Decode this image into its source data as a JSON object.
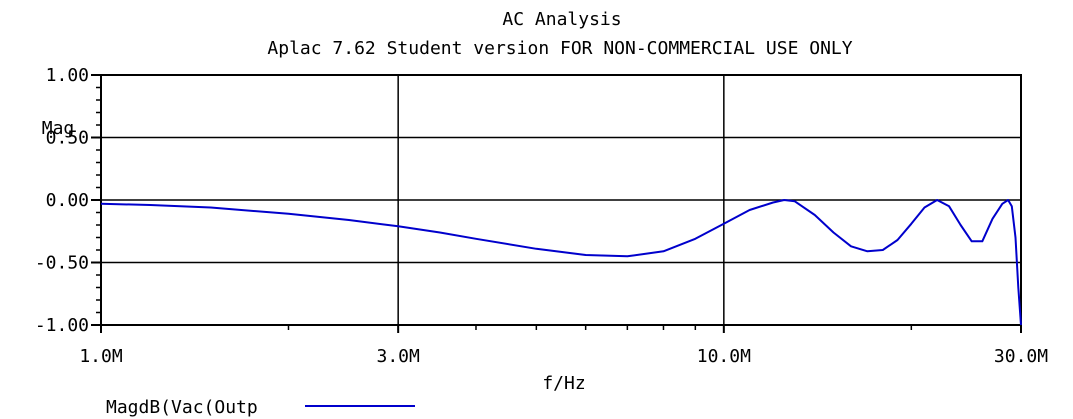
{
  "chart_data": {
    "type": "line",
    "title": "AC Analysis",
    "subtitle": "Aplac 7.62 Student version FOR NON-COMMERCIAL USE ONLY",
    "xlabel": "f/Hz",
    "ylabel": "Mag",
    "x_scale": "log",
    "xlim": [
      1000000,
      30000000
    ],
    "ylim": [
      -1.0,
      1.0
    ],
    "x_ticks": [
      {
        "value": 1000000,
        "label": "1.0M"
      },
      {
        "value": 3000000,
        "label": "3.0M"
      },
      {
        "value": 10000000,
        "label": "10.0M"
      },
      {
        "value": 30000000,
        "label": "30.0M"
      }
    ],
    "y_ticks": [
      {
        "value": 1.0,
        "label": "1.00"
      },
      {
        "value": 0.5,
        "label": "0.50"
      },
      {
        "value": 0.0,
        "label": "0.00"
      },
      {
        "value": -0.5,
        "label": "-0.50"
      },
      {
        "value": -1.0,
        "label": "-1.00"
      }
    ],
    "grid": true,
    "legend_position": "bottom-left",
    "series": [
      {
        "name": "MagdB(Vac(Outp",
        "color": "#0000cc",
        "x": [
          1000000,
          1200000,
          1500000,
          2000000,
          2500000,
          3000000,
          3500000,
          4000000,
          5000000,
          6000000,
          7000000,
          8000000,
          9000000,
          10000000,
          11000000,
          12000000,
          12500000,
          13000000,
          14000000,
          15000000,
          16000000,
          17000000,
          18000000,
          19000000,
          20000000,
          21000000,
          22000000,
          23000000,
          24000000,
          25000000,
          26000000,
          27000000,
          28000000,
          28600000,
          29000000,
          29400000,
          29700000,
          30000000
        ],
        "values": [
          -0.03,
          -0.04,
          -0.06,
          -0.11,
          -0.16,
          -0.21,
          -0.26,
          -0.31,
          -0.39,
          -0.44,
          -0.45,
          -0.41,
          -0.31,
          -0.19,
          -0.08,
          -0.02,
          0.0,
          -0.01,
          -0.12,
          -0.26,
          -0.37,
          -0.41,
          -0.4,
          -0.32,
          -0.19,
          -0.06,
          0.0,
          -0.05,
          -0.2,
          -0.33,
          -0.33,
          -0.15,
          -0.03,
          0.0,
          -0.05,
          -0.3,
          -0.7,
          -1.0
        ]
      }
    ]
  }
}
